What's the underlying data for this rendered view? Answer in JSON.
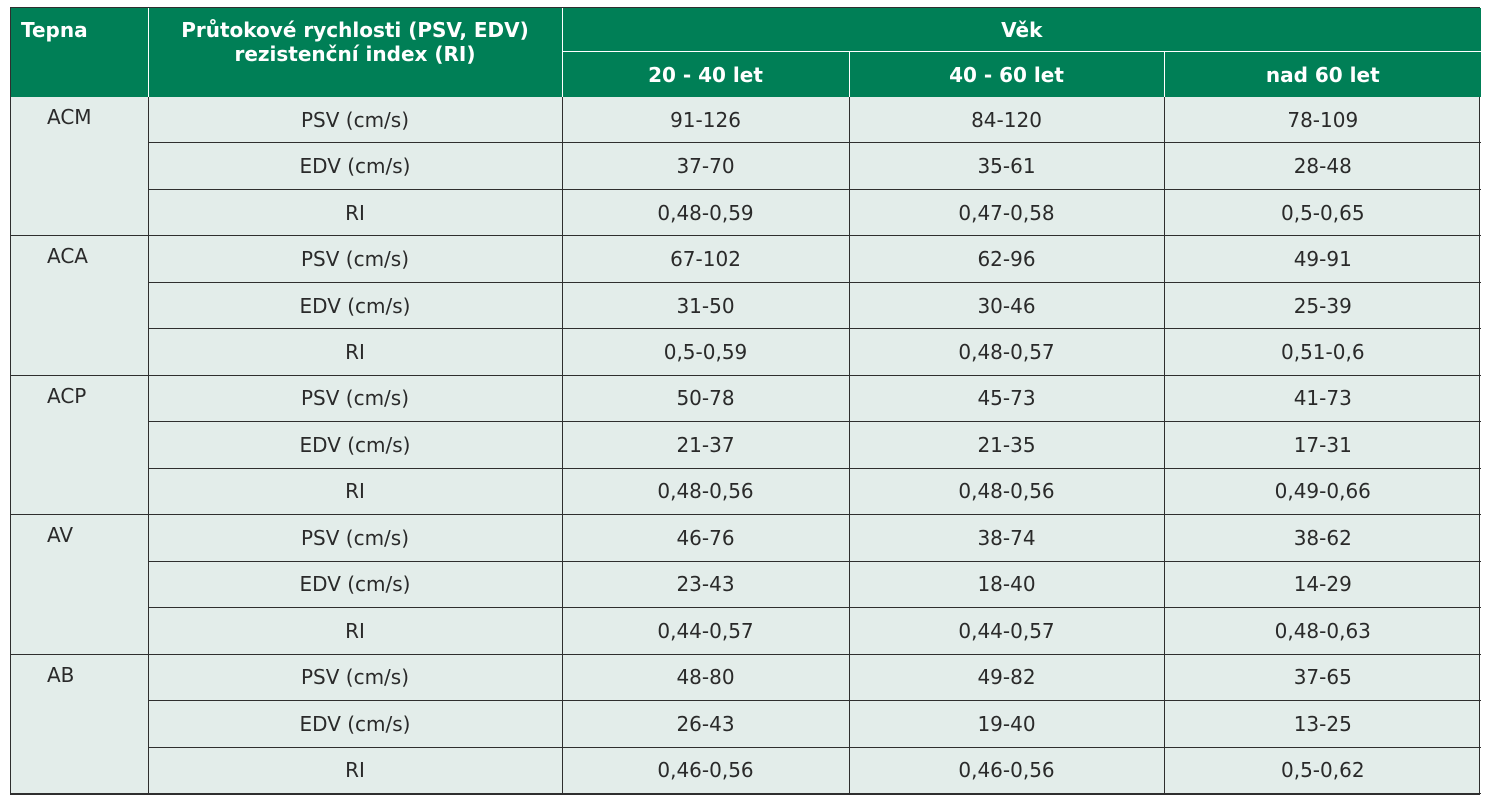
{
  "header": {
    "artery": "Tepna",
    "flow_line1": "Průtokové rychlosti (PSV, EDV)",
    "flow_line2": "rezistenční index (RI)",
    "age": "Věk",
    "age_groups": [
      "20 - 40 let",
      "40 - 60 let",
      "nad 60 let"
    ]
  },
  "groups": [
    {
      "artery": "ACM",
      "rows": [
        {
          "param": "PSV (cm/s)",
          "values": [
            "91-126",
            "84-120",
            "78-109"
          ]
        },
        {
          "param": "EDV (cm/s)",
          "values": [
            "37-70",
            "35-61",
            "28-48"
          ]
        },
        {
          "param": "RI",
          "values": [
            "0,48-0,59",
            "0,47-0,58",
            "0,5-0,65"
          ]
        }
      ]
    },
    {
      "artery": "ACA",
      "rows": [
        {
          "param": "PSV (cm/s)",
          "values": [
            "67-102",
            "62-96",
            "49-91"
          ]
        },
        {
          "param": "EDV (cm/s)",
          "values": [
            "31-50",
            "30-46",
            "25-39"
          ]
        },
        {
          "param": "RI",
          "values": [
            "0,5-0,59",
            "0,48-0,57",
            "0,51-0,6"
          ]
        }
      ]
    },
    {
      "artery": "ACP",
      "rows": [
        {
          "param": "PSV (cm/s)",
          "values": [
            "50-78",
            "45-73",
            "41-73"
          ]
        },
        {
          "param": "EDV (cm/s)",
          "values": [
            "21-37",
            "21-35",
            "17-31"
          ]
        },
        {
          "param": "RI",
          "values": [
            "0,48-0,56",
            "0,48-0,56",
            "0,49-0,66"
          ]
        }
      ]
    },
    {
      "artery": "AV",
      "rows": [
        {
          "param": "PSV (cm/s)",
          "values": [
            "46-76",
            "38-74",
            "38-62"
          ]
        },
        {
          "param": "EDV (cm/s)",
          "values": [
            "23-43",
            "18-40",
            "14-29"
          ]
        },
        {
          "param": "RI",
          "values": [
            "0,44-0,57",
            "0,44-0,57",
            "0,48-0,63"
          ]
        }
      ]
    },
    {
      "artery": "AB",
      "rows": [
        {
          "param": "PSV (cm/s)",
          "values": [
            "48-80",
            "49-82",
            "37-65"
          ]
        },
        {
          "param": "EDV (cm/s)",
          "values": [
            "26-43",
            "19-40",
            "13-25"
          ]
        },
        {
          "param": "RI",
          "values": [
            "0,46-0,56",
            "0,46-0,56",
            "0,5-0,62"
          ]
        }
      ]
    }
  ],
  "colors": {
    "header_bg": "#007f56",
    "body_bg": "#e3edea",
    "grid": "#2f2f2f"
  }
}
